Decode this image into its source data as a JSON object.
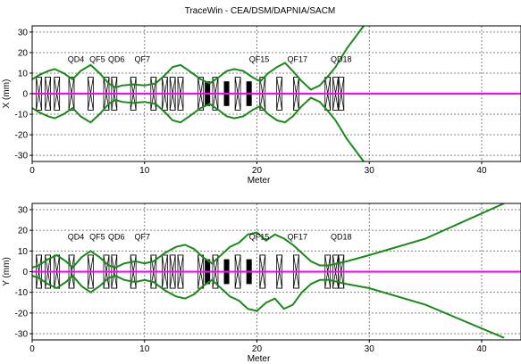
{
  "window_title": "TraceWin - CEA/DSM/DAPNIA/SACM",
  "colors": {
    "envelope": "#1a8a1a",
    "beam": "#ff00ff",
    "grid": "#808080",
    "element": "#000000",
    "frame": "#000000"
  },
  "chart_data": [
    {
      "type": "line",
      "title": "TraceWin - CEA/DSM/DAPNIA/SACM",
      "xlabel": "Meter",
      "ylabel": "X (mm)",
      "xlim": [
        0,
        43.5
      ],
      "ylim": [
        -33,
        33
      ],
      "x_ticks": [
        0,
        10,
        20,
        30,
        40
      ],
      "y_ticks": [
        -30,
        -20,
        -10,
        0,
        10,
        20,
        30
      ],
      "grid": true,
      "element_labels": [
        {
          "text": "QD4",
          "x": 3.9
        },
        {
          "text": "QF5",
          "x": 5.8
        },
        {
          "text": "QD6",
          "x": 7.5
        },
        {
          "text": "QF7",
          "x": 9.8
        },
        {
          "text": "QF15",
          "x": 20.2
        },
        {
          "text": "QF17",
          "x": 23.6
        },
        {
          "text": "QD18",
          "x": 27.5
        }
      ],
      "elements": [
        {
          "x": 0.6,
          "kind": "quad"
        },
        {
          "x": 1.4,
          "kind": "quad"
        },
        {
          "x": 2.2,
          "kind": "quad"
        },
        {
          "x": 3.5,
          "kind": "quad"
        },
        {
          "x": 5.2,
          "kind": "quad"
        },
        {
          "x": 6.6,
          "kind": "quad"
        },
        {
          "x": 7.3,
          "kind": "quad"
        },
        {
          "x": 9.0,
          "kind": "quad"
        },
        {
          "x": 10.8,
          "kind": "quad"
        },
        {
          "x": 11.8,
          "kind": "quad"
        },
        {
          "x": 12.5,
          "kind": "quad"
        },
        {
          "x": 13.2,
          "kind": "quad"
        },
        {
          "x": 15.0,
          "kind": "quad"
        },
        {
          "x": 15.6,
          "kind": "cavity"
        },
        {
          "x": 16.3,
          "kind": "quad"
        },
        {
          "x": 17.3,
          "kind": "cavity"
        },
        {
          "x": 18.3,
          "kind": "quad"
        },
        {
          "x": 19.3,
          "kind": "cavity"
        },
        {
          "x": 20.5,
          "kind": "quad"
        },
        {
          "x": 22.0,
          "kind": "quad"
        },
        {
          "x": 23.5,
          "kind": "quad"
        },
        {
          "x": 26.3,
          "kind": "quad"
        },
        {
          "x": 27.0,
          "kind": "quad"
        },
        {
          "x": 27.5,
          "kind": "quad"
        }
      ],
      "series": [
        {
          "color": "#1a8a1a",
          "x": [
            0,
            0.6,
            1.4,
            2.0,
            2.8,
            3.6,
            4.3,
            5.2,
            6.0,
            6.8,
            7.4,
            8.0,
            9.0,
            10.0,
            11.0,
            11.8,
            12.5,
            13.2,
            14.0,
            15.0,
            15.8,
            16.6,
            17.3,
            18.0,
            18.8,
            19.6,
            20.3,
            21.0,
            21.8,
            22.5,
            23.2,
            24.0,
            24.8,
            25.6,
            26.4,
            27.0,
            28.0,
            29.5
          ],
          "values": [
            -7,
            -9,
            -11,
            -12,
            -10,
            -7,
            -11,
            -14,
            -10,
            -5,
            -3,
            -4,
            -4.5,
            -4,
            -5,
            -9,
            -13,
            -14,
            -11,
            -7,
            -5,
            -8,
            -11,
            -12,
            -11,
            -8,
            -6,
            -10,
            -13,
            -14,
            -11,
            -6,
            -2,
            -4,
            -9,
            -13,
            -22,
            -33
          ]
        },
        {
          "color": "#1a8a1a",
          "x": [
            0,
            0.6,
            1.4,
            2.0,
            2.8,
            3.6,
            4.3,
            5.2,
            6.0,
            6.8,
            7.4,
            8.0,
            9.0,
            10.0,
            11.0,
            11.8,
            12.5,
            13.2,
            14.0,
            15.0,
            15.8,
            16.6,
            17.3,
            18.0,
            18.8,
            19.6,
            20.3,
            21.0,
            21.8,
            22.5,
            23.2,
            24.0,
            24.8,
            25.6,
            26.4,
            27.0,
            28.0,
            29.5
          ],
          "values": [
            7,
            9,
            11,
            12,
            10,
            7,
            11,
            14,
            10,
            5,
            3,
            4,
            4.5,
            4,
            5,
            9,
            13,
            14,
            11,
            7,
            5,
            8,
            11,
            12,
            11,
            8,
            6,
            10,
            13,
            15,
            11,
            6,
            2,
            4,
            9,
            13,
            22,
            33
          ]
        },
        {
          "color": "#ff00ff",
          "x": [
            0,
            43.5
          ],
          "values": [
            0,
            0
          ]
        }
      ]
    },
    {
      "type": "line",
      "xlabel": "Meter",
      "ylabel": "Y (mm)",
      "xlim": [
        0,
        43.5
      ],
      "ylim": [
        -33,
        33
      ],
      "x_ticks": [
        0,
        10,
        20,
        30,
        40
      ],
      "y_ticks": [
        -30,
        -20,
        -10,
        0,
        10,
        20,
        30
      ],
      "grid": true,
      "element_labels": [
        {
          "text": "QD4",
          "x": 3.9
        },
        {
          "text": "QF5",
          "x": 5.8
        },
        {
          "text": "QD6",
          "x": 7.5
        },
        {
          "text": "QF7",
          "x": 9.8
        },
        {
          "text": "QF15",
          "x": 20.2
        },
        {
          "text": "QF17",
          "x": 23.6
        },
        {
          "text": "QD18",
          "x": 27.5
        }
      ],
      "elements": [
        {
          "x": 0.6,
          "kind": "quad"
        },
        {
          "x": 1.4,
          "kind": "quad"
        },
        {
          "x": 2.2,
          "kind": "quad"
        },
        {
          "x": 3.5,
          "kind": "quad"
        },
        {
          "x": 5.2,
          "kind": "quad"
        },
        {
          "x": 6.6,
          "kind": "quad"
        },
        {
          "x": 7.3,
          "kind": "quad"
        },
        {
          "x": 9.0,
          "kind": "quad"
        },
        {
          "x": 10.8,
          "kind": "quad"
        },
        {
          "x": 11.8,
          "kind": "quad"
        },
        {
          "x": 12.5,
          "kind": "quad"
        },
        {
          "x": 13.2,
          "kind": "quad"
        },
        {
          "x": 15.0,
          "kind": "quad"
        },
        {
          "x": 15.6,
          "kind": "cavity"
        },
        {
          "x": 16.3,
          "kind": "quad"
        },
        {
          "x": 17.3,
          "kind": "cavity"
        },
        {
          "x": 18.3,
          "kind": "quad"
        },
        {
          "x": 19.3,
          "kind": "cavity"
        },
        {
          "x": 20.5,
          "kind": "quad"
        },
        {
          "x": 22.0,
          "kind": "quad"
        },
        {
          "x": 23.5,
          "kind": "quad"
        },
        {
          "x": 26.3,
          "kind": "quad"
        },
        {
          "x": 27.0,
          "kind": "quad"
        },
        {
          "x": 27.5,
          "kind": "quad"
        }
      ],
      "series": [
        {
          "color": "#1a8a1a",
          "x": [
            0,
            0.6,
            1.4,
            2.2,
            3.0,
            3.6,
            4.4,
            5.2,
            6.0,
            6.8,
            7.4,
            8.2,
            9.2,
            10.0,
            10.8,
            11.8,
            12.8,
            13.6,
            14.4,
            15.2,
            16.0,
            16.8,
            17.6,
            18.4,
            19.2,
            20.0,
            20.8,
            21.6,
            22.4,
            23.2,
            24.0,
            24.8,
            25.6,
            26.4,
            27.2,
            28.0,
            30.0,
            35.0,
            42.0
          ],
          "values": [
            -2,
            -3,
            -6,
            -8,
            -5,
            -2,
            -7,
            -10,
            -7,
            -3,
            -2,
            -4,
            -5,
            -4,
            -5,
            -9,
            -12,
            -13,
            -11,
            -7,
            -4,
            -8,
            -12,
            -14,
            -18,
            -19,
            -15,
            -13,
            -18,
            -16,
            -10,
            -6,
            -4,
            -4,
            -5,
            -6,
            -8,
            -16,
            -32
          ]
        },
        {
          "color": "#1a8a1a",
          "x": [
            0,
            0.6,
            1.4,
            2.2,
            3.0,
            3.6,
            4.4,
            5.2,
            6.0,
            6.8,
            7.4,
            8.2,
            9.2,
            10.0,
            10.8,
            11.8,
            12.8,
            13.6,
            14.4,
            15.2,
            16.0,
            16.8,
            17.6,
            18.4,
            19.2,
            20.0,
            20.8,
            21.6,
            22.4,
            23.2,
            24.0,
            24.8,
            25.6,
            26.4,
            27.2,
            28.0,
            30.0,
            35.0,
            42.0
          ],
          "values": [
            2,
            3,
            6,
            8,
            5,
            2,
            7,
            10,
            7,
            3,
            2,
            4,
            5,
            4,
            5,
            9,
            12,
            13,
            11,
            7,
            4,
            8,
            12,
            14,
            18,
            19,
            15,
            18,
            16,
            13,
            9,
            5,
            3,
            3,
            4,
            5,
            8,
            16,
            33
          ]
        },
        {
          "color": "#ff00ff",
          "x": [
            0,
            43.5
          ],
          "values": [
            0,
            0
          ]
        }
      ]
    }
  ]
}
